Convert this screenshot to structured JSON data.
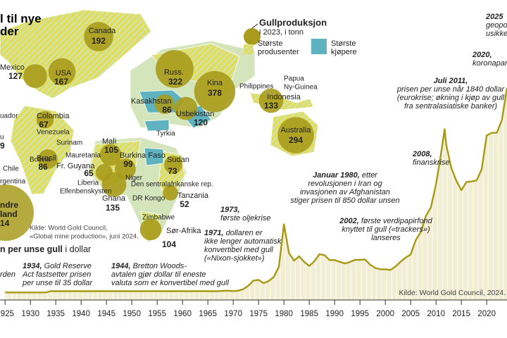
{
  "chart_data": {
    "type": "line",
    "title_lines": [
      "l til nye",
      "der"
    ],
    "map": {
      "legend_title": "Gullproduksjon",
      "legend_subtitle": "i 2023, i tonn",
      "legend_producers": [
        "Største",
        "produsenter"
      ],
      "legend_buyers": [
        "Største",
        "kjøpere"
      ],
      "producers": [
        {
          "name": "Canada",
          "value": 192
        },
        {
          "name": "USA",
          "value": 167
        },
        {
          "name": "Mexico",
          "value": 127
        },
        {
          "name": "Russ.",
          "value": 322
        },
        {
          "name": "Kina",
          "value": 378
        },
        {
          "name": "Kasakhstan",
          "value": 86
        },
        {
          "name": "Usbekistan",
          "value": 120
        },
        {
          "name": "Indonesia",
          "value": 133
        },
        {
          "name": "Australia",
          "value": 294
        },
        {
          "name": "Colombia",
          "value": 67
        },
        {
          "name": "Brasil",
          "value": 86
        },
        {
          "name": "Mali",
          "value": 105
        },
        {
          "name": "Burkina Faso",
          "value": 99
        },
        {
          "name": "Fr. Guyana",
          "value": 65
        },
        {
          "name": "Ghana",
          "value": 135
        },
        {
          "name": "Sudan",
          "value": 73
        },
        {
          "name": "Tanzania",
          "value": 52
        },
        {
          "name": "Sør-Afrika",
          "value": 104
        }
      ],
      "labels": [
        "Philippines",
        "Papua",
        "Ny-Guinea",
        "Tyrkia",
        "Venezuela",
        "Surinam",
        "Bolivia",
        "Chile",
        "rgentina",
        "uador",
        "Mauretania",
        "Liberia",
        "Elfenbenskysten",
        "Niger",
        "Den sentralafrikanske rep.",
        "DR Kongo",
        "Zimbabwe",
        "u",
        "9",
        "ndre",
        "land",
        "14"
      ],
      "source_lines": [
        "Kilde: World Gold Council,",
        "«Global mine production», juni 2024."
      ],
      "color": "#a89b1c"
    },
    "chart_title": "n per unse gull",
    "chart_subtitle": " i dollar",
    "source": "Kilde: World Gold Council, 2024.",
    "color": "#a69a14",
    "xlim": [
      1924,
      2024
    ],
    "xticks": [
      1925,
      1930,
      1935,
      1940,
      1945,
      1950,
      1955,
      1960,
      1965,
      1970,
      1975,
      1980,
      1985,
      1990,
      1995,
      2000,
      2005,
      2010,
      2015,
      2020
    ],
    "ylim": [
      0,
      2800
    ],
    "x": [
      1925,
      1926,
      1927,
      1928,
      1929,
      1930,
      1931,
      1932,
      1933,
      1934,
      1935,
      1936,
      1937,
      1938,
      1939,
      1940,
      1941,
      1942,
      1943,
      1944,
      1945,
      1946,
      1947,
      1948,
      1949,
      1950,
      1951,
      1952,
      1953,
      1954,
      1955,
      1956,
      1957,
      1958,
      1959,
      1960,
      1961,
      1962,
      1963,
      1964,
      1965,
      1966,
      1967,
      1968,
      1969,
      1970,
      1971,
      1972,
      1973,
      1974,
      1975,
      1976,
      1977,
      1978,
      1979,
      1980,
      1980.5,
      1981,
      1982,
      1983,
      1984,
      1985,
      1986,
      1987,
      1988,
      1989,
      1990,
      1991,
      1992,
      1993,
      1994,
      1995,
      1996,
      1997,
      1998,
      1999,
      2000,
      2001,
      2002,
      2003,
      2004,
      2005,
      2006,
      2007,
      2008,
      2009,
      2010,
      2011,
      2011.7,
      2012,
      2013,
      2014,
      2015,
      2016,
      2017,
      2018,
      2019,
      2020,
      2021,
      2022,
      2023,
      2024
    ],
    "values": [
      21,
      21,
      21,
      21,
      21,
      21,
      21,
      21,
      21,
      35,
      35,
      35,
      35,
      35,
      35,
      35,
      35,
      35,
      35,
      35,
      35,
      35,
      35,
      35,
      35,
      35,
      35,
      35,
      35,
      35,
      35,
      35,
      35,
      35,
      35,
      35,
      35,
      35,
      35,
      35,
      35,
      35,
      35,
      39,
      41,
      36,
      41,
      58,
      97,
      154,
      161,
      125,
      148,
      193,
      306,
      780,
      620,
      460,
      376,
      424,
      361,
      317,
      368,
      447,
      437,
      381,
      383,
      362,
      344,
      360,
      384,
      384,
      388,
      331,
      294,
      279,
      279,
      271,
      310,
      363,
      409,
      444,
      603,
      695,
      872,
      972,
      1225,
      1572,
      1840,
      1669,
      1411,
      1266,
      1160,
      1251,
      1257,
      1268,
      1393,
      1770,
      1799,
      1800,
      1943,
      2300
    ],
    "annotations": [
      {
        "head": "",
        "lines": [
          "rden"
        ]
      },
      {
        "head": "1934,",
        "lines": [
          " Gold Reserve",
          "Act fastsetter prisen",
          "per unse til 35  dollar"
        ]
      },
      {
        "head": "1944,",
        "lines": [
          " Bretton Woods-",
          "avtalen gjør dollar til eneste",
          "valuta som er konvertibel med gull"
        ]
      },
      {
        "head": "1971,",
        "lines": [
          " dollaren er",
          "ikke lenger automatisk",
          "konvertibel med gull",
          "(«Nixon-sjokket»)"
        ]
      },
      {
        "head": "1973,",
        "lines": [
          "",
          "første oljekrise"
        ]
      },
      {
        "head": "Januar 1980,",
        "lines": [
          " etter",
          "revolusjonen i Iran og",
          "invasjonen av Afghanistan",
          "stiger prisen til 850 dollar unsen"
        ]
      },
      {
        "head": "2002,",
        "lines": [
          " første verdipapirfond",
          "knyttet til gull («trackers»)",
          "lanseres"
        ]
      },
      {
        "head": "2008,",
        "lines": [
          "",
          "finanskrise"
        ]
      },
      {
        "head": "Juli 2011,",
        "lines": [
          "",
          "prisen per unse når 1840 dollar",
          "(eurokrise; økning i kjøp av gull",
          "fra sentralasiatiske banker)"
        ]
      },
      {
        "head": "2020,",
        "lines": [
          "",
          "koronapandemi"
        ]
      },
      {
        "head": "2025",
        "lines": [
          "",
          "geopolitisk",
          "usikkerhet"
        ]
      }
    ]
  }
}
